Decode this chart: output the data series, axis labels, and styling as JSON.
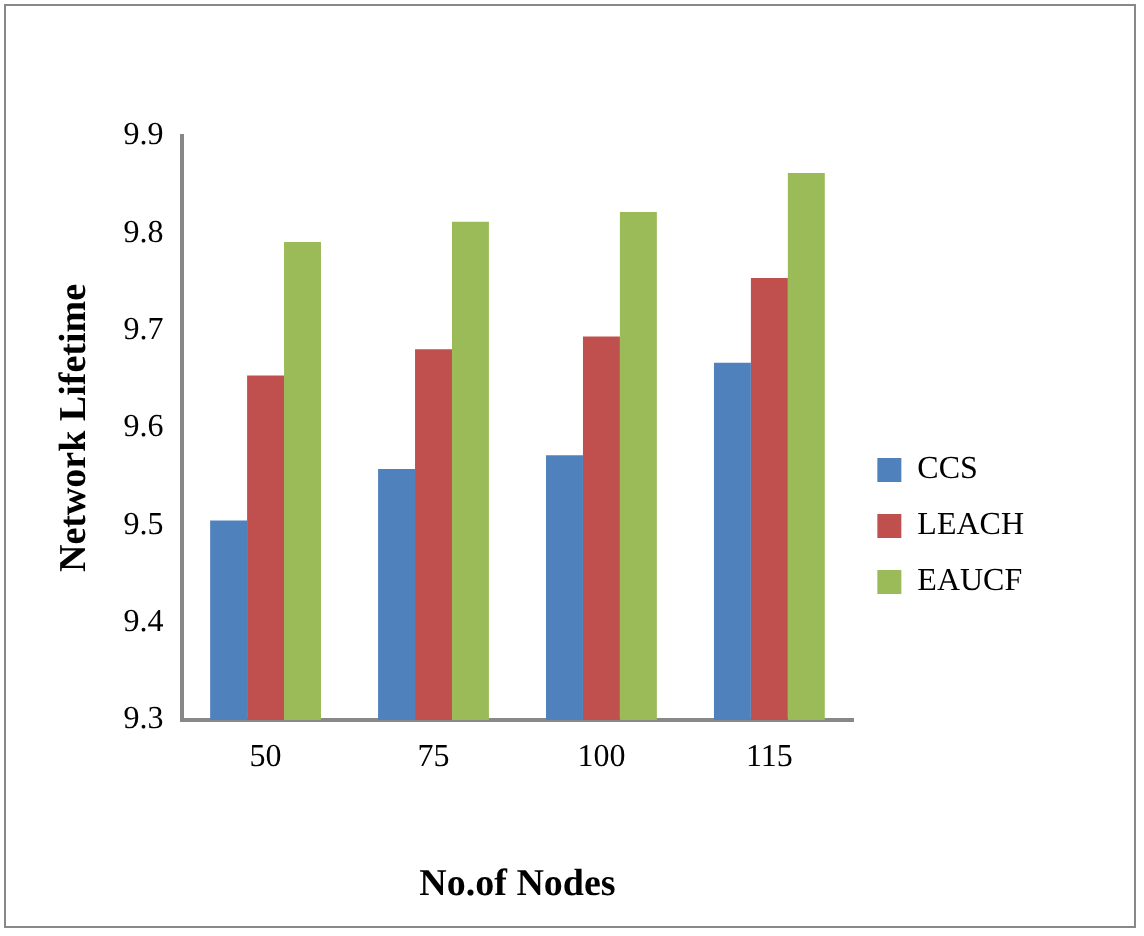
{
  "chart_data": {
    "type": "bar",
    "xlabel": "No.of Nodes",
    "ylabel": "Network Lifetime",
    "categories": [
      "50",
      "75",
      "100",
      "115"
    ],
    "series": [
      {
        "name": "CCS",
        "color": "#4f81bd",
        "values": [
          9.505,
          9.558,
          9.572,
          9.667
        ]
      },
      {
        "name": "LEACH",
        "color": "#c0504d",
        "values": [
          9.654,
          9.681,
          9.694,
          9.754
        ]
      },
      {
        "name": "EAUCF",
        "color": "#9bbb59",
        "values": [
          9.791,
          9.812,
          9.822,
          9.862
        ]
      }
    ],
    "ylim": [
      9.3,
      9.9
    ],
    "yticks": [
      9.3,
      9.4,
      9.5,
      9.6,
      9.7,
      9.8,
      9.9
    ],
    "grid": false,
    "legend": "right"
  }
}
